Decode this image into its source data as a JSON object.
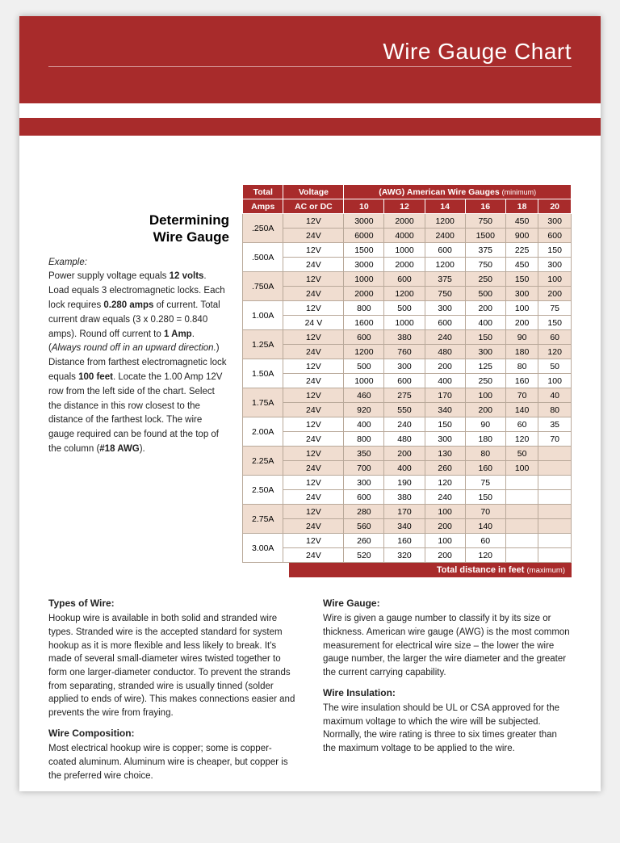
{
  "page_title": "Wire Gauge Chart",
  "colors": {
    "brand_red": "#a82b2b",
    "tint": "#f0ddd0",
    "border": "#b9a99a",
    "text": "#222222",
    "page_bg": "#ffffff"
  },
  "left": {
    "heading_line1": "Determining",
    "heading_line2": "Wire Gauge",
    "example_label": "Example:",
    "example_html": "Power supply voltage equals <b>12 volts</b>. Load equals 3 electromagnetic locks. Each lock requires <b>0.280 amps</b> of current.  Total current draw equals (3 x 0.280 = 0.840 amps). Round off current to <b>1 Amp</b>. (<i>Always round off in an upward direction.</i>) Distance from farthest electromagnetic lock equals <b>100 feet</b>.  Locate the 1.00 Amp 12V row from the left side of the chart.  Select the distance in this row closest to the distance of the farthest lock. The wire gauge required can be found at the top of the column (<b>#18 AWG</b>)."
  },
  "table": {
    "header_total": "Total",
    "header_amps": "Amps",
    "header_voltage": "Voltage",
    "header_acdc": "AC or DC",
    "header_awg": "(AWG) American Wire Gauges",
    "header_awg_小": "(minimum)",
    "gauge_cols": [
      "10",
      "12",
      "14",
      "16",
      "18",
      "20"
    ],
    "groups": [
      {
        "amps": ".250A",
        "tint": true,
        "rows": [
          {
            "v": "12V",
            "d": [
              3000,
              2000,
              1200,
              750,
              450,
              300
            ]
          },
          {
            "v": "24V",
            "d": [
              6000,
              4000,
              2400,
              1500,
              900,
              600
            ]
          }
        ]
      },
      {
        "amps": ".500A",
        "tint": false,
        "rows": [
          {
            "v": "12V",
            "d": [
              1500,
              1000,
              600,
              375,
              225,
              150
            ]
          },
          {
            "v": "24V",
            "d": [
              3000,
              2000,
              1200,
              750,
              450,
              300
            ]
          }
        ]
      },
      {
        "amps": ".750A",
        "tint": true,
        "rows": [
          {
            "v": "12V",
            "d": [
              1000,
              600,
              375,
              250,
              150,
              100
            ]
          },
          {
            "v": "24V",
            "d": [
              2000,
              1200,
              750,
              500,
              300,
              200
            ]
          }
        ]
      },
      {
        "amps": "1.00A",
        "tint": false,
        "rows": [
          {
            "v": "12V",
            "d": [
              800,
              500,
              300,
              200,
              100,
              75
            ]
          },
          {
            "v": "24 V",
            "d": [
              1600,
              1000,
              600,
              400,
              200,
              150
            ]
          }
        ]
      },
      {
        "amps": "1.25A",
        "tint": true,
        "rows": [
          {
            "v": "12V",
            "d": [
              600,
              380,
              240,
              150,
              90,
              60
            ]
          },
          {
            "v": "24V",
            "d": [
              1200,
              760,
              480,
              300,
              180,
              120
            ]
          }
        ]
      },
      {
        "amps": "1.50A",
        "tint": false,
        "rows": [
          {
            "v": "12V",
            "d": [
              500,
              300,
              200,
              125,
              80,
              50
            ]
          },
          {
            "v": "24V",
            "d": [
              1000,
              600,
              400,
              250,
              160,
              100
            ]
          }
        ]
      },
      {
        "amps": "1.75A",
        "tint": true,
        "rows": [
          {
            "v": "12V",
            "d": [
              460,
              275,
              170,
              100,
              70,
              40
            ]
          },
          {
            "v": "24V",
            "d": [
              920,
              550,
              340,
              200,
              140,
              80
            ]
          }
        ]
      },
      {
        "amps": "2.00A",
        "tint": false,
        "rows": [
          {
            "v": "12V",
            "d": [
              400,
              240,
              150,
              90,
              60,
              35
            ]
          },
          {
            "v": "24V",
            "d": [
              800,
              480,
              300,
              180,
              120,
              70
            ]
          }
        ]
      },
      {
        "amps": "2.25A",
        "tint": true,
        "rows": [
          {
            "v": "12V",
            "d": [
              350,
              200,
              130,
              80,
              50,
              ""
            ]
          },
          {
            "v": "24V",
            "d": [
              700,
              400,
              260,
              160,
              100,
              ""
            ]
          }
        ]
      },
      {
        "amps": "2.50A",
        "tint": false,
        "rows": [
          {
            "v": "12V",
            "d": [
              300,
              190,
              120,
              75,
              "",
              ""
            ]
          },
          {
            "v": "24V",
            "d": [
              600,
              380,
              240,
              150,
              "",
              ""
            ]
          }
        ]
      },
      {
        "amps": "2.75A",
        "tint": true,
        "rows": [
          {
            "v": "12V",
            "d": [
              280,
              170,
              100,
              70,
              "",
              ""
            ]
          },
          {
            "v": "24V",
            "d": [
              560,
              340,
              200,
              140,
              "",
              ""
            ]
          }
        ]
      },
      {
        "amps": "3.00A",
        "tint": false,
        "rows": [
          {
            "v": "12V",
            "d": [
              260,
              160,
              100,
              60,
              "",
              ""
            ]
          },
          {
            "v": "24V",
            "d": [
              520,
              320,
              200,
              120,
              "",
              ""
            ]
          }
        ]
      }
    ],
    "footer_label": "Total distance in feet",
    "footer_small": "(maximum)"
  },
  "bottom": {
    "left": [
      {
        "h": "Types of Wire:",
        "p": "Hookup wire is available in both solid and stranded wire types. Stranded wire is the accepted standard for system hookup as it is more flexible and less likely to break. It's made of several small-diameter wires twisted together to form one larger-diameter conductor. To prevent the strands from separating, stranded wire is usually tinned (solder applied to ends of wire). This makes connections easier and prevents the wire from fraying."
      },
      {
        "h": "Wire Composition:",
        "p": "Most electrical hookup wire is copper; some is copper-coated aluminum. Aluminum wire is cheaper, but copper is the preferred wire choice."
      }
    ],
    "right": [
      {
        "h": "Wire Gauge:",
        "p": "Wire is given a gauge number to classify it by its size or thickness. American wire gauge (AWG) is the most common measurement for electrical wire size – the lower the wire gauge number, the larger the wire diameter and the greater the current carrying capability."
      },
      {
        "h": "Wire Insulation:",
        "p": "The wire insulation should be UL or CSA approved for the maximum voltage to which the wire will be subjected. Normally, the wire rating is three to six times greater than the maximum voltage to be applied to the wire."
      }
    ]
  }
}
